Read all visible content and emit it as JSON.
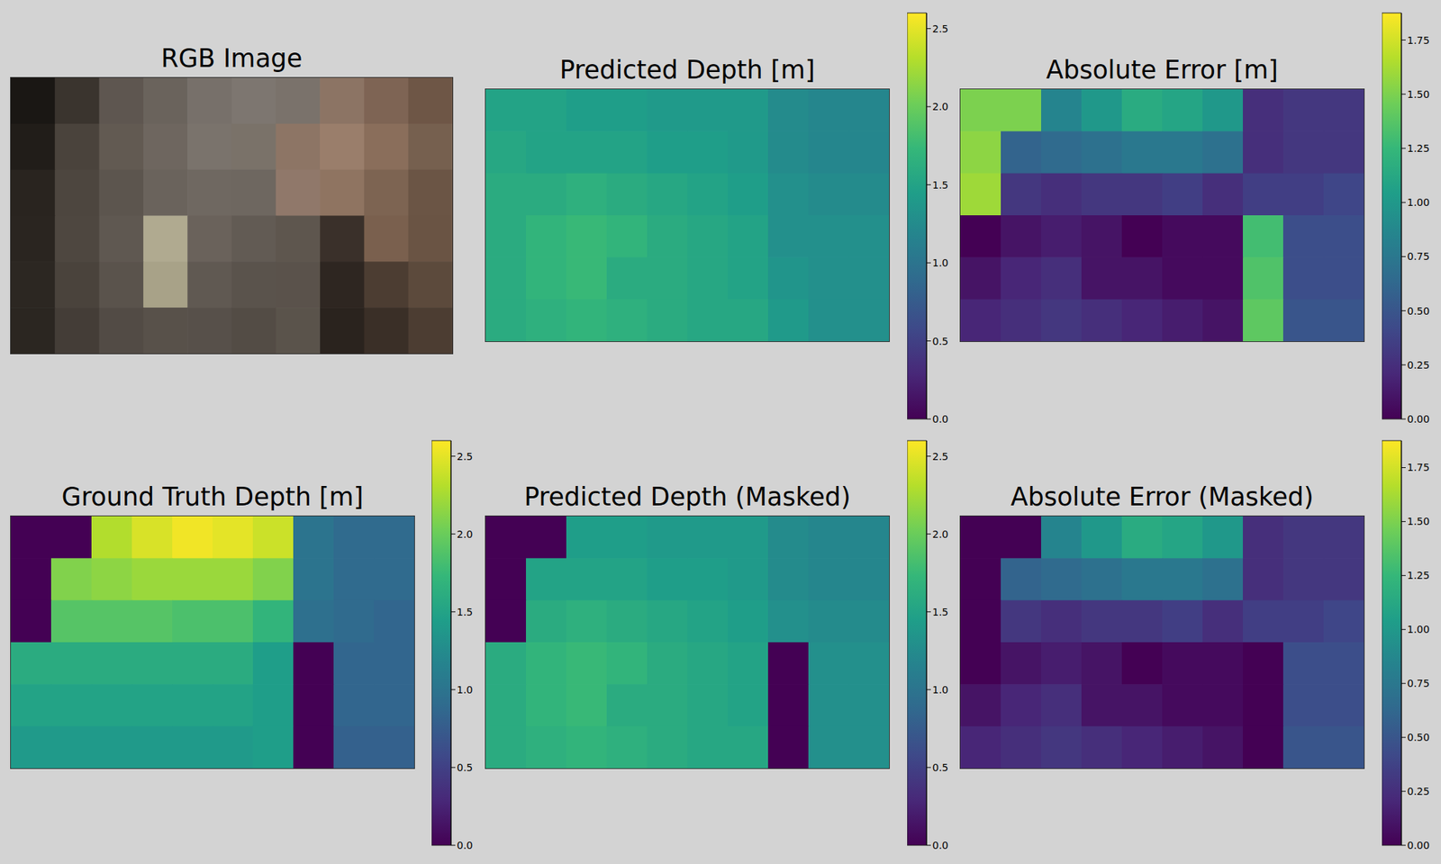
{
  "chart_data": [
    {
      "type": "image",
      "title": "RGB Image",
      "tick_labels": false,
      "cells": [
        [
          "#1a1714",
          "#3a342e",
          "#5e5650",
          "#6a635c",
          "#77706a",
          "#7d7670",
          "#7a726b",
          "#8c7464",
          "#7e6454",
          "#6e5646"
        ],
        [
          "#211d19",
          "#4a433c",
          "#625a52",
          "#6e665f",
          "#7a736c",
          "#7a7269",
          "#8d7565",
          "#9a7e6b",
          "#8a6e5b",
          "#76604f"
        ],
        [
          "#29241f",
          "#4d463f",
          "#5c554e",
          "#6a635c",
          "#6f6861",
          "#6e6760",
          "#90786a",
          "#8f7461",
          "#7d6452",
          "#6b5545"
        ],
        [
          "#2a2520",
          "#4e4740",
          "#5f5851",
          "#b0aa90",
          "#6a625b",
          "#625b54",
          "#5e564e",
          "#3a302a",
          "#7a604e",
          "#6a5444"
        ],
        [
          "#2c2722",
          "#4a433c",
          "#5a534c",
          "#a8a288",
          "#605952",
          "#5a534c",
          "#5a524b",
          "#2e2621",
          "#4c3d32",
          "#5c4a3c"
        ],
        [
          "#2b2621",
          "#443d37",
          "#524b45",
          "#58514a",
          "#57504a",
          "#534c45",
          "#5a534b",
          "#2a231e",
          "#3a2f27",
          "#4c3d32"
        ]
      ]
    },
    {
      "type": "heatmap",
      "title": "Predicted Depth [m]",
      "color": "viridis",
      "tick_labels": false,
      "cells": [
        [
          1.5,
          1.5,
          1.45,
          1.45,
          1.4,
          1.4,
          1.4,
          1.25,
          1.2,
          1.2
        ],
        [
          1.55,
          1.5,
          1.5,
          1.5,
          1.45,
          1.45,
          1.4,
          1.25,
          1.2,
          1.2
        ],
        [
          1.6,
          1.6,
          1.65,
          1.6,
          1.55,
          1.5,
          1.45,
          1.3,
          1.25,
          1.25
        ],
        [
          1.6,
          1.7,
          1.75,
          1.7,
          1.6,
          1.55,
          1.5,
          1.3,
          1.3,
          1.3
        ],
        [
          1.6,
          1.7,
          1.75,
          1.6,
          1.6,
          1.55,
          1.5,
          1.35,
          1.3,
          1.3
        ],
        [
          1.6,
          1.65,
          1.7,
          1.65,
          1.6,
          1.55,
          1.55,
          1.4,
          1.3,
          1.3
        ]
      ],
      "colorbar_lim": [
        0,
        2.6
      ],
      "colorbar_ticks": [
        {
          "value": 0,
          "label": "0.0"
        },
        0.5,
        {
          "value": 1,
          "label": "1.0"
        },
        1.5,
        {
          "value": 2,
          "label": "2.0"
        },
        2.5
      ]
    },
    {
      "type": "heatmap",
      "title": "Absolute Error [m]",
      "color": "viridis",
      "tick_labels": false,
      "cells": [
        [
          1.5,
          1.5,
          0.85,
          1.0,
          1.15,
          1.1,
          1.0,
          0.25,
          0.3,
          0.3
        ],
        [
          1.55,
          0.6,
          0.65,
          0.7,
          0.75,
          0.75,
          0.7,
          0.25,
          0.3,
          0.3
        ],
        [
          1.6,
          0.3,
          0.25,
          0.3,
          0.3,
          0.35,
          0.25,
          0.35,
          0.35,
          0.4
        ],
        [
          0,
          0.1,
          0.15,
          0.1,
          0,
          0.05,
          0.05,
          1.3,
          0.45,
          0.45
        ],
        [
          0.1,
          0.2,
          0.25,
          0.1,
          0.1,
          0.05,
          0.05,
          1.35,
          0.45,
          0.45
        ],
        [
          0.2,
          0.25,
          0.3,
          0.25,
          0.2,
          0.15,
          0.1,
          1.4,
          0.5,
          0.5
        ]
      ],
      "colorbar_lim": [
        0,
        1.875
      ],
      "colorbar_ticks": [
        {
          "value": 0,
          "label": "0.00"
        },
        0.25,
        {
          "value": 0.5,
          "label": "0.50"
        },
        0.75,
        {
          "value": 1,
          "label": "1.00"
        },
        1.25,
        {
          "value": 1.5,
          "label": "1.50"
        },
        1.75
      ]
    },
    {
      "type": "heatmap",
      "title": "Ground Truth Depth [m]",
      "color": "viridis",
      "tick_labels": false,
      "cells": [
        [
          0,
          0,
          2.3,
          2.45,
          2.55,
          2.5,
          2.4,
          1.0,
          0.9,
          0.9
        ],
        [
          0,
          2.1,
          2.15,
          2.2,
          2.2,
          2.2,
          2.1,
          1.0,
          0.9,
          0.9
        ],
        [
          0,
          1.9,
          1.9,
          1.9,
          1.85,
          1.85,
          1.7,
          0.95,
          0.9,
          0.85
        ],
        [
          1.6,
          1.6,
          1.6,
          1.6,
          1.6,
          1.6,
          1.45,
          0,
          0.85,
          0.85
        ],
        [
          1.5,
          1.5,
          1.5,
          1.5,
          1.5,
          1.5,
          1.45,
          0,
          0.85,
          0.85
        ],
        [
          1.4,
          1.4,
          1.4,
          1.4,
          1.4,
          1.4,
          1.45,
          0,
          0.8,
          0.8
        ]
      ],
      "colorbar_lim": [
        0,
        2.6
      ],
      "colorbar_ticks": [
        {
          "value": 0,
          "label": "0.0"
        },
        0.5,
        {
          "value": 1,
          "label": "1.0"
        },
        1.5,
        {
          "value": 2,
          "label": "2.0"
        },
        2.5
      ]
    },
    {
      "type": "heatmap",
      "title": "Predicted Depth (Masked)",
      "color": "viridis",
      "tick_labels": false,
      "cells": [
        [
          0,
          0,
          1.45,
          1.45,
          1.4,
          1.4,
          1.4,
          1.25,
          1.2,
          1.2
        ],
        [
          0,
          1.5,
          1.5,
          1.5,
          1.45,
          1.45,
          1.4,
          1.25,
          1.2,
          1.2
        ],
        [
          0,
          1.6,
          1.65,
          1.6,
          1.55,
          1.5,
          1.45,
          1.3,
          1.25,
          1.25
        ],
        [
          1.6,
          1.7,
          1.75,
          1.7,
          1.6,
          1.55,
          1.5,
          0,
          1.3,
          1.3
        ],
        [
          1.6,
          1.7,
          1.75,
          1.6,
          1.6,
          1.55,
          1.5,
          0,
          1.3,
          1.3
        ],
        [
          1.6,
          1.65,
          1.7,
          1.65,
          1.6,
          1.55,
          1.55,
          0,
          1.3,
          1.3
        ]
      ],
      "colorbar_lim": [
        0,
        2.6
      ],
      "colorbar_ticks": [
        {
          "value": 0,
          "label": "0.0"
        },
        0.5,
        {
          "value": 1,
          "label": "1.0"
        },
        1.5,
        {
          "value": 2,
          "label": "2.0"
        },
        2.5
      ]
    },
    {
      "type": "heatmap",
      "title": "Absolute Error (Masked)",
      "color": "viridis",
      "tick_labels": false,
      "cells": [
        [
          0,
          0,
          0.85,
          1.0,
          1.15,
          1.1,
          1.0,
          0.25,
          0.3,
          0.3
        ],
        [
          0,
          0.6,
          0.65,
          0.7,
          0.75,
          0.75,
          0.7,
          0.25,
          0.3,
          0.3
        ],
        [
          0,
          0.3,
          0.25,
          0.3,
          0.3,
          0.35,
          0.25,
          0.35,
          0.35,
          0.4
        ],
        [
          0,
          0.1,
          0.15,
          0.1,
          0,
          0.05,
          0.05,
          0,
          0.45,
          0.45
        ],
        [
          0.1,
          0.2,
          0.25,
          0.1,
          0.1,
          0.05,
          0.05,
          0,
          0.45,
          0.45
        ],
        [
          0.2,
          0.25,
          0.3,
          0.25,
          0.2,
          0.15,
          0.1,
          0,
          0.5,
          0.5
        ]
      ],
      "colorbar_lim": [
        0,
        1.875
      ],
      "colorbar_ticks": [
        {
          "value": 0,
          "label": "0.00"
        },
        0.25,
        {
          "value": 0.5,
          "label": "0.50"
        },
        0.75,
        {
          "value": 1,
          "label": "1.00"
        },
        1.25,
        {
          "value": 1.5,
          "label": "1.50"
        },
        1.75
      ]
    }
  ]
}
